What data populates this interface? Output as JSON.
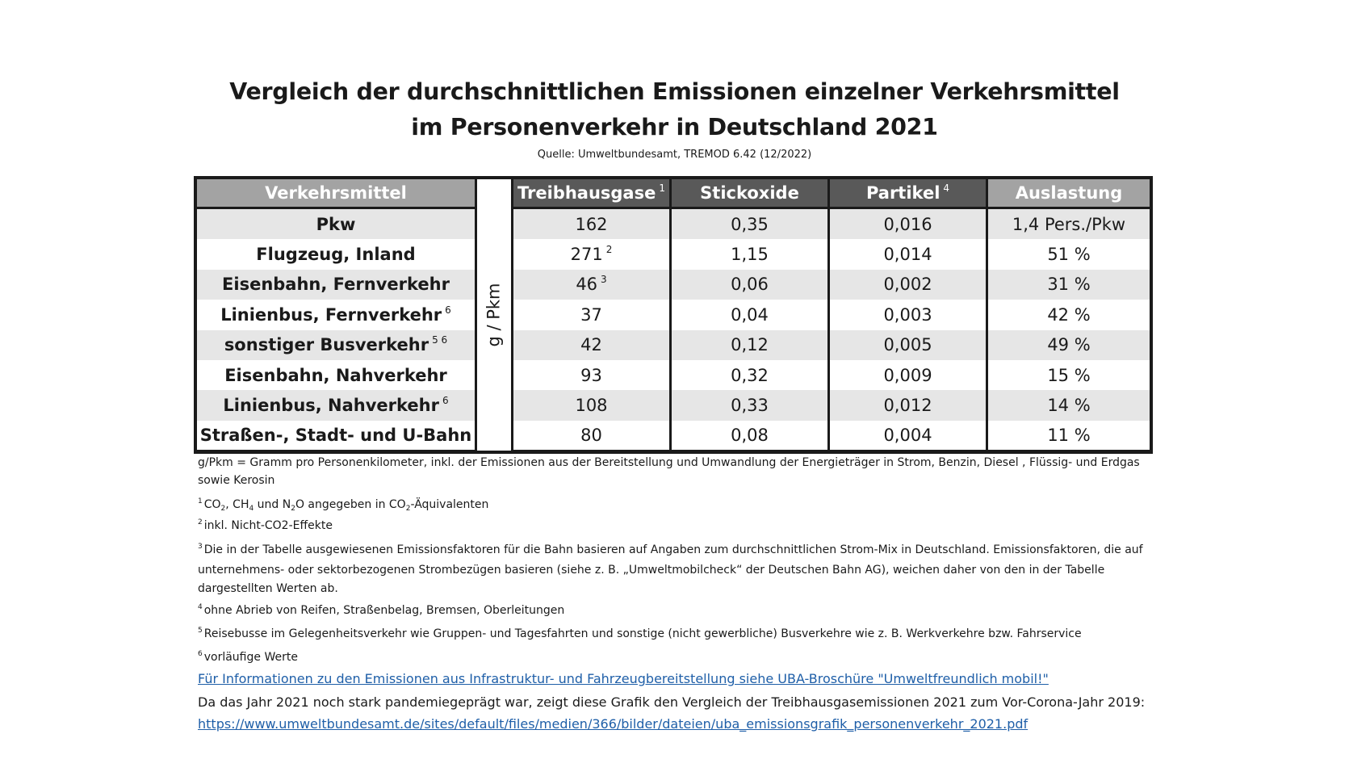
{
  "title_line1": "Vergleich der durchschnittlichen Emissionen einzelner Verkehrsmittel",
  "title_line2": "im Personenverkehr in Deutschland 2021",
  "source": "Quelle: Umweltbundesamt, TREMOD 6.42 (12/2022)",
  "table": {
    "headers": {
      "mode": "Verkehrsmittel",
      "ghg": "Treibhausgase",
      "ghg_sup": "1",
      "nox": "Stickoxide",
      "pm": "Partikel",
      "pm_sup": "4",
      "load": "Auslastung"
    },
    "unit": "g / Pkm",
    "rows": [
      {
        "mode": "Pkw",
        "mode_sup": "",
        "ghg": "162",
        "ghg_sup": "",
        "nox": "0,35",
        "pm": "0,016",
        "load": "1,4 Pers./Pkw"
      },
      {
        "mode": "Flugzeug, Inland",
        "mode_sup": "",
        "ghg": "271",
        "ghg_sup": "2",
        "nox": "1,15",
        "pm": "0,014",
        "load": "51 %"
      },
      {
        "mode": "Eisenbahn, Fernverkehr",
        "mode_sup": "",
        "ghg": "46",
        "ghg_sup": "3",
        "nox": "0,06",
        "pm": "0,002",
        "load": "31 %"
      },
      {
        "mode": "Linienbus, Fernverkehr",
        "mode_sup": "6",
        "ghg": "37",
        "ghg_sup": "",
        "nox": "0,04",
        "pm": "0,003",
        "load": "42 %"
      },
      {
        "mode": "sonstiger Busverkehr",
        "mode_sup": "5 6",
        "ghg": "42",
        "ghg_sup": "",
        "nox": "0,12",
        "pm": "0,005",
        "load": "49 %"
      },
      {
        "mode": "Eisenbahn, Nahverkehr",
        "mode_sup": "",
        "ghg": "93",
        "ghg_sup": "",
        "nox": "0,32",
        "pm": "0,009",
        "load": "15 %"
      },
      {
        "mode": "Linienbus, Nahverkehr",
        "mode_sup": "6",
        "ghg": "108",
        "ghg_sup": "",
        "nox": "0,33",
        "pm": "0,012",
        "load": "14 %"
      },
      {
        "mode": "Straßen-, Stadt- und U-Bahn",
        "mode_sup": "",
        "ghg": "80",
        "ghg_sup": "",
        "nox": "0,08",
        "pm": "0,004",
        "load": "11 %"
      }
    ]
  },
  "notes": {
    "unit_def": "g/Pkm = Gramm pro Personenkilometer, inkl. der Emissionen aus der Bereitstellung und Umwandlung der Energieträger in Strom, Benzin, Diesel , Flüssig- und Erdgas sowie Kerosin",
    "fn1": {
      "num": "1",
      "co2": "CO",
      "co2_sub": "2",
      "ch4": ", CH",
      "ch4_sub": "4",
      "n2o_a": " und N",
      "n2o_sub": "2",
      "n2o_b": "O angegeben in CO",
      "eq_sub": "2",
      "tail": "-Äquivalenten"
    },
    "fn2": {
      "num": "2",
      "text": "inkl. Nicht-CO2-Effekte"
    },
    "fn3": {
      "num": "3",
      "text": "Die in der Tabelle ausgewiesenen Emissionsfaktoren für die Bahn basieren auf Angaben zum durchschnittlichen Strom-Mix in Deutschland. Emissionsfaktoren, die auf unternehmens- oder sektorbezogenen Strombezügen basieren (siehe z. B. „Umweltmobilcheck“ der Deutschen Bahn AG), weichen daher von den in der Tabelle dargestellten Werten ab."
    },
    "fn4": {
      "num": "4",
      "text": "ohne Abrieb von Reifen, Straßenbelag, Bremsen, Oberleitungen"
    },
    "fn5": {
      "num": "5",
      "text": "Reisebusse im Gelegenheitsverkehr wie Gruppen- und Tagesfahrten und sonstige (nicht gewerbliche) Busverkehre wie z. B. Werkverkehre bzw. Fahrservice"
    },
    "fn6": {
      "num": "6",
      "text": "vorläufige Werte"
    },
    "link1": "Für Informationen zu den Emissionen aus Infrastruktur- und Fahrzeugbereitstellung siehe UBA-Broschüre \"Umweltfreundlich mobil!\"",
    "comparison": "Da das Jahr 2021 noch stark pandemiegeprägt war, zeigt diese Grafik den Vergleich der Treibhausgasemissionen 2021 zum Vor-Corona-Jahr 2019:",
    "link2": "https://www.umweltbundesamt.de/sites/default/files/medien/366/bilder/dateien/uba_emissionsgrafik_personenverkehr_2021.pdf"
  }
}
